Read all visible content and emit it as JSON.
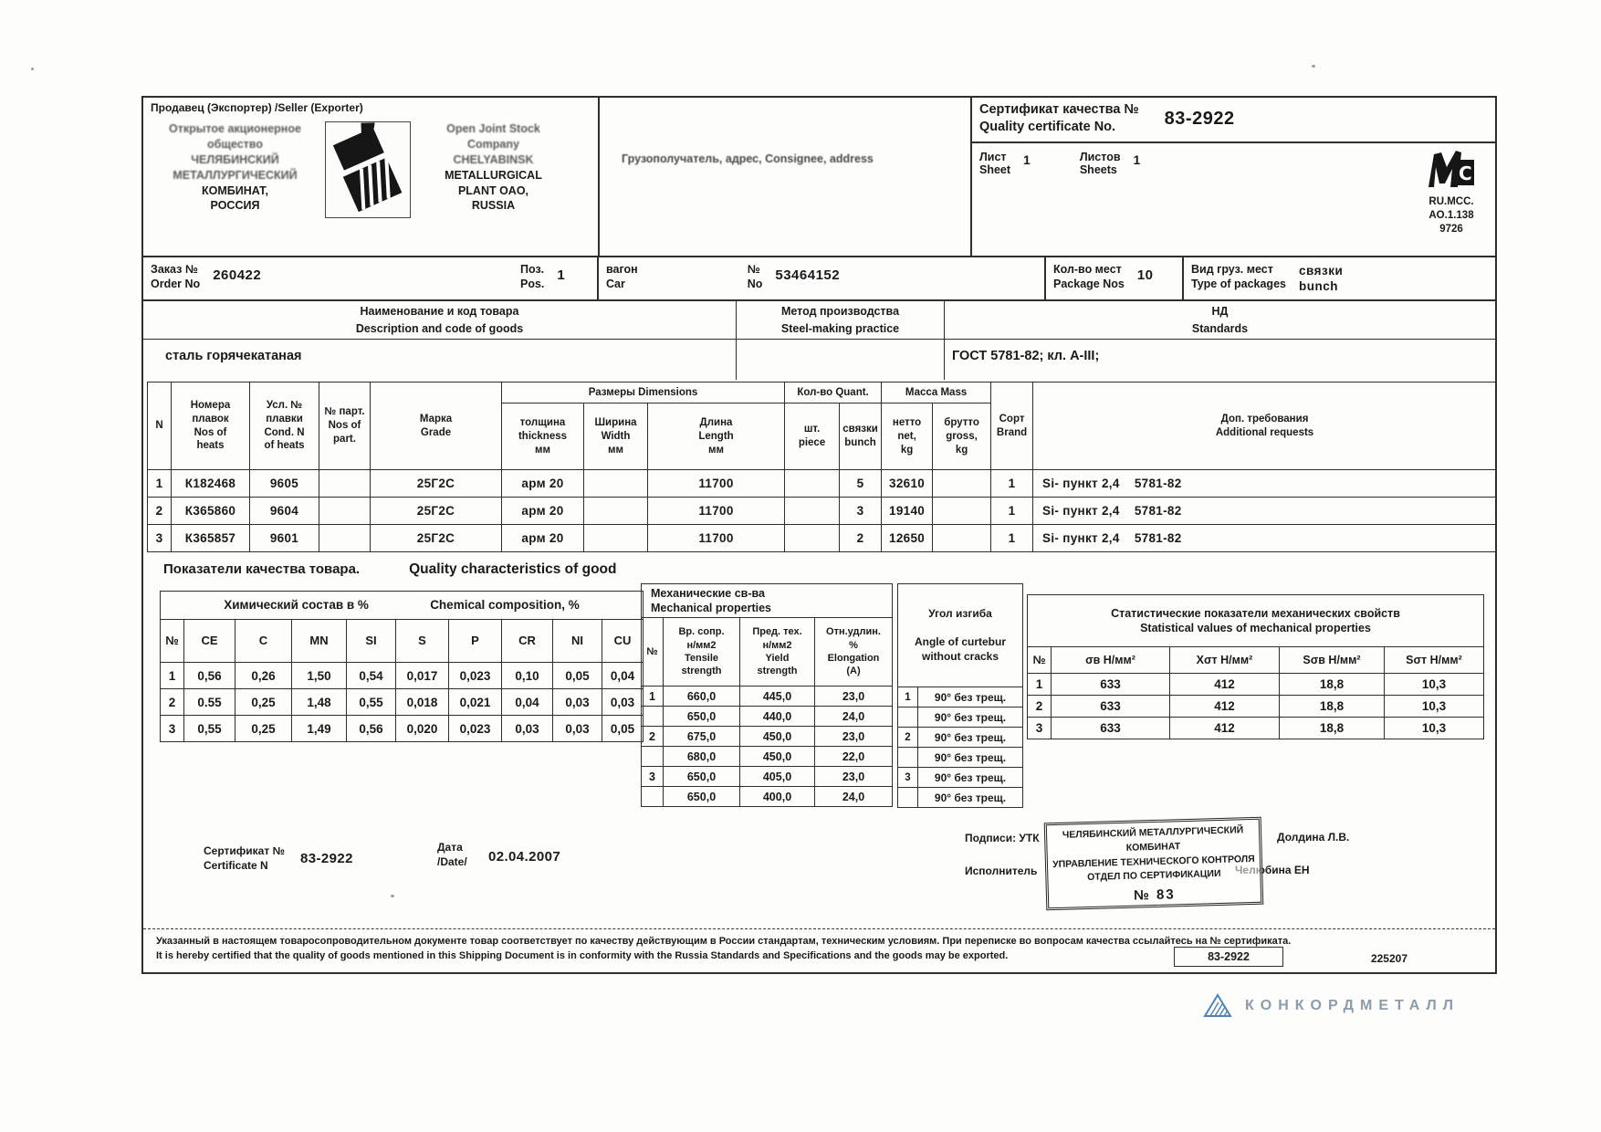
{
  "header": {
    "seller_label": "Продавец (Экспортер) /Seller (Exporter)",
    "seller_ru_faint": "Открытое акционерное\nобщество\nЧЕЛЯБИНСКИЙ\nМЕТАЛЛУРГИЧЕСКИЙ",
    "seller_ru_clear": "КОМБИНАТ,\nРОССИЯ",
    "seller_en_faint": "Open Joint Stock\nCompany\nCHELYABINSK",
    "seller_en_clear": "METALLURGICAL\nPLANT OAO,\nRUSSIA",
    "consignee_label": "Грузополучатель, адрес, Consignee, address",
    "cert_label": "Сертификат качества №\nQuality certificate No.",
    "cert_no": "83-2922",
    "sheet_label": "Лист\nSheet",
    "sheet_value": "1",
    "sheets_label": "Листов\nSheets",
    "sheets_value": "1",
    "reg_mark": "RU.MCC.\nAO.1.138",
    "reg_num": "9726"
  },
  "order": {
    "order_label": "Заказ №\nOrder No",
    "order_no": "260422",
    "pos_label": "Поз.\nPos.",
    "pos_value": "1",
    "car_label": "вагон\nCar",
    "car_no_label": "№\nNo",
    "car_no": "53464152",
    "package_label": "Кол-во мест\nPackage Nos",
    "package_value": "10",
    "type_label": "Вид груз. мест\nType of packages",
    "type_value": "связки\nbunch"
  },
  "goods": {
    "description_label": "Наименование и код товара\nDescription and code of goods",
    "method_label": "Метод производства\nSteel-making practice",
    "standards_label": "НД\nStandards",
    "description_value": "сталь горячекатаная",
    "standards_value": "ГОСТ 5781-82;  кл. А-III;"
  },
  "main_table": {
    "col_n": "N",
    "col_heats": "Номера\nплавок\nNos of\nheats",
    "col_cond": "Усл. №\nплавки\nCond. N\nof heats",
    "col_part": "№ парт.\nNos of\npart.",
    "col_grade": "Марка\nGrade",
    "col_dim_group": "Размеры Dimensions",
    "col_thickness": "толщина\nthickness\nмм",
    "col_width": "Ширина\nWidth\nмм",
    "col_length": "Длина\nLength\nмм",
    "col_quant_group": "Кол-во Quant.",
    "col_piece": "шт.\npiece",
    "col_bunch": "связки\nbunch",
    "col_mass_group": "Масса Mass",
    "col_net": "нетто\nnet,\nkg",
    "col_gross": "брутто\ngross,\nkg",
    "col_brand": "Сорт\nBrand",
    "col_req": "Доп. требования\nAdditional requests",
    "rows": [
      [
        "1",
        "К182468",
        "9605",
        "",
        "25Г2С",
        "арм 20",
        "",
        "11700",
        "",
        "5",
        "32610",
        "",
        "1",
        "Si-  пункт 2,4    5781-82"
      ],
      [
        "2",
        "К365860",
        "9604",
        "",
        "25Г2С",
        "арм 20",
        "",
        "11700",
        "",
        "3",
        "19140",
        "",
        "1",
        "Si-  пункт 2,4    5781-82"
      ],
      [
        "3",
        "К365857",
        "9601",
        "",
        "25Г2С",
        "арм 20",
        "",
        "11700",
        "",
        "2",
        "12650",
        "",
        "1",
        "Si-  пункт 2,4    5781-82"
      ]
    ]
  },
  "quality": {
    "title_ru": "Показатели качества товара.",
    "title_en": "Quality characteristics of good",
    "chem": {
      "title_ru": "Химический состав в %",
      "title_en": "Chemical  composition, %",
      "headers": [
        "№",
        "CE",
        "C",
        "MN",
        "SI",
        "S",
        "P",
        "CR",
        "NI",
        "CU"
      ],
      "rows": [
        [
          "1",
          "0,56",
          "0,26",
          "1,50",
          "0,54",
          "0,017",
          "0,023",
          "0,10",
          "0,05",
          "0,04"
        ],
        [
          "2",
          "0.55",
          "0,25",
          "1,48",
          "0,55",
          "0,018",
          "0,021",
          "0,04",
          "0,03",
          "0,03"
        ],
        [
          "3",
          "0,55",
          "0,25",
          "1,49",
          "0,56",
          "0,020",
          "0,023",
          "0,03",
          "0,03",
          "0,05"
        ]
      ]
    },
    "mech": {
      "title": "Механические  св-ва\nMechanical properties",
      "col_n": "№",
      "col_tensile": "Вр. сопр.\nн/мм2\nTensile\nstrength",
      "col_yield": "Пред. тех.\nн/мм2\nYield\nstrength",
      "col_elong": "Отн.удлин.\n%\nElongation\n(A)",
      "rows": [
        [
          "1",
          "660,0",
          "445,0",
          "23,0"
        ],
        [
          "",
          "650,0",
          "440,0",
          "24,0"
        ],
        [
          "2",
          "675,0",
          "450,0",
          "23,0"
        ],
        [
          "",
          "680,0",
          "450,0",
          "22,0"
        ],
        [
          "3",
          "650,0",
          "405,0",
          "23,0"
        ],
        [
          "",
          "650,0",
          "400,0",
          "24,0"
        ]
      ]
    },
    "bend": {
      "title": "Угол  изгиба\n\nAngle of curtebur\nwithout cracks",
      "rows": [
        [
          "1",
          "90° без трещ."
        ],
        [
          "",
          "90° без трещ."
        ],
        [
          "2",
          "90° без трещ."
        ],
        [
          "",
          "90° без трещ."
        ],
        [
          "3",
          "90° без трещ."
        ],
        [
          "",
          "90° без трещ."
        ]
      ]
    },
    "stats": {
      "title": "Статистические показатели механических свойств\nStatistical values of mechanical properties",
      "headers": [
        "№",
        "σв Н/мм²",
        "Χσт Н/мм²",
        "Sσв Н/мм²",
        "Sσт Н/мм²"
      ],
      "rows": [
        [
          "1",
          "633",
          "412",
          "18,8",
          "10,3"
        ],
        [
          "2",
          "633",
          "412",
          "18,8",
          "10,3"
        ],
        [
          "3",
          "633",
          "412",
          "18,8",
          "10,3"
        ]
      ]
    }
  },
  "footer": {
    "cert_label": "Сертификат №\nCertificate N",
    "cert_value": "83-2922",
    "date_label": "Дата\n/Date/",
    "date_value": "02.04.2007",
    "signatures_label": "Подписи: УТК",
    "signature1": "Долдина Л.В.",
    "executor_label": "Исполнитель",
    "signature2": "Челюбина ЕН",
    "stamp_lines": "ЧЕЛЯБИНСКИЙ МЕТАЛЛУРГИЧЕСКИЙ\nКОМБИНАТ\nУПРАВЛЕНИЕ ТЕХНИЧЕСКОГО КОНТРОЛЯ\nОТДЕЛ ПО СЕРТИФИКАЦИИ",
    "stamp_no": "№ 83",
    "disclaimer_ru": "Указанный в настоящем товаросопроводительном документе товар соответствует по качеству действующим в России стандартам, техническим условиям. При переписке во вопросам качества ссылайтесь на № сертификата.",
    "disclaimer_en": "It is hereby certified that the quality of goods mentioned in this Shipping Document is in conformity with the Russia Standards and Specifications and the goods may be exported.",
    "ref_no": "83-2922",
    "ref_code": "225207"
  },
  "brand": {
    "name": "КОНКОРДМЕТАЛЛ"
  }
}
